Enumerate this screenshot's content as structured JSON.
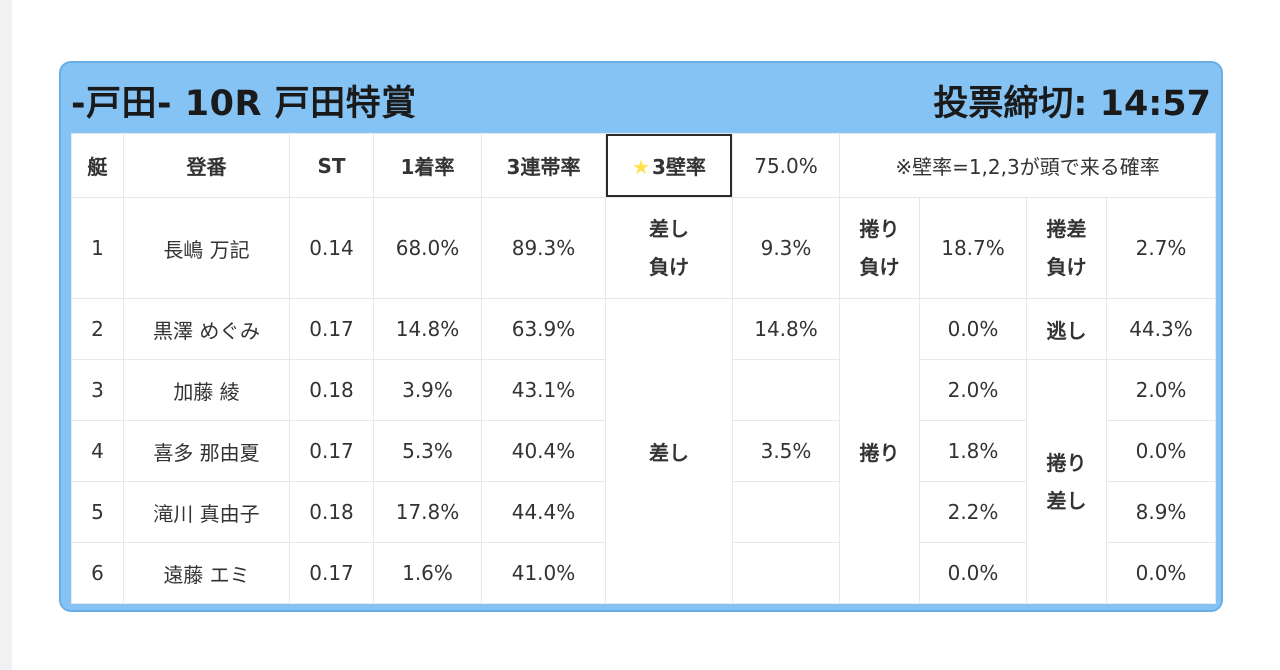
{
  "header": {
    "title": "-戸田- 10R 戸田特賞",
    "deadline": "投票締切: 14:57"
  },
  "columns": {
    "boat": "艇",
    "registration": "登番",
    "st": "ST",
    "first_rate": "1着率",
    "top3_rate": "3連帯率",
    "wall_rate_star": "★",
    "wall_rate_label": "3壁率",
    "wall_rate_value": "75.0%",
    "wall_rate_note": "※壁率=1,2,3が頭で来る確率"
  },
  "rows": [
    {
      "boat": "1",
      "name": "長嶋 万記",
      "st": "0.14",
      "first": "68.0%",
      "top3": "89.3%"
    },
    {
      "boat": "2",
      "name": "黒澤 めぐみ",
      "st": "0.17",
      "first": "14.8%",
      "top3": "63.9%"
    },
    {
      "boat": "3",
      "name": "加藤 綾",
      "st": "0.18",
      "first": "3.9%",
      "top3": "43.1%"
    },
    {
      "boat": "4",
      "name": "喜多 那由夏",
      "st": "0.17",
      "first": "5.3%",
      "top3": "40.4%"
    },
    {
      "boat": "5",
      "name": "滝川 真由子",
      "st": "0.18",
      "first": "17.8%",
      "top3": "44.4%"
    },
    {
      "boat": "6",
      "name": "遠藤 エミ",
      "st": "0.17",
      "first": "1.6%",
      "top3": "41.0%"
    }
  ],
  "patterns": {
    "sashi_make": {
      "line1": "差し",
      "line2": "負け",
      "value": "9.3%"
    },
    "makuri_make": {
      "line1": "捲り",
      "line2": "負け",
      "value": "18.7%"
    },
    "makurisashi_make": {
      "line1": "捲差",
      "line2": "負け",
      "value": "2.7%"
    },
    "sashi": {
      "label": "差し",
      "row2": "14.8%",
      "row4": "3.5%"
    },
    "makuri": {
      "label": "捲り",
      "values": [
        "0.0%",
        "2.0%",
        "1.8%",
        "2.2%",
        "0.0%"
      ]
    },
    "nige": {
      "label": "逃し",
      "value": "44.3%"
    },
    "makurisashi": {
      "line1": "捲り",
      "line2": "差し",
      "values": [
        "2.0%",
        "0.0%",
        "8.9%",
        "0.0%"
      ]
    }
  },
  "colors": {
    "panel": "#86c3f5",
    "highlight": "#f3a51e",
    "boat1": "#ffffff",
    "boat2": "#3a3a3a",
    "boat3": "#e84242",
    "boat4": "#3d7cc9",
    "boat5": "#eeea5a",
    "boat6": "#4cae4c"
  }
}
